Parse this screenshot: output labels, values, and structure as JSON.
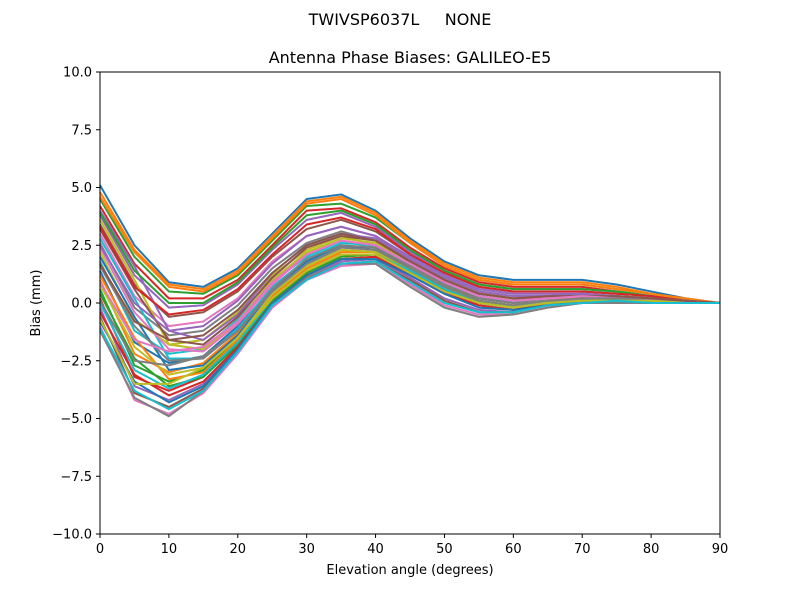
{
  "figure": {
    "suptitle": "TWIVSP6037L     NONE"
  },
  "chart_data": {
    "type": "line",
    "title": "Antenna Phase Biases: GALILEO-E5",
    "xlabel": "Elevation angle (degrees)",
    "ylabel": "Bias (mm)",
    "xlim": [
      0,
      90
    ],
    "ylim": [
      -10,
      10
    ],
    "xticks": [
      0,
      10,
      20,
      30,
      40,
      50,
      60,
      70,
      80,
      90
    ],
    "yticks": [
      -10.0,
      -7.5,
      -5.0,
      -2.5,
      0.0,
      2.5,
      5.0,
      7.5,
      10.0
    ],
    "xtick_labels": [
      "0",
      "10",
      "20",
      "30",
      "40",
      "50",
      "60",
      "70",
      "80",
      "90"
    ],
    "ytick_labels": [
      "−10.0",
      "−7.5",
      "−5.0",
      "−2.5",
      "0.0",
      "2.5",
      "5.0",
      "7.5",
      "10.0"
    ],
    "grid": false,
    "legend": "none",
    "x": [
      0,
      5,
      10,
      15,
      20,
      25,
      30,
      35,
      40,
      45,
      50,
      55,
      60,
      65,
      70,
      75,
      80,
      85,
      90
    ],
    "colors": [
      "#1f77b4",
      "#ff7f0e",
      "#2ca02c",
      "#d62728",
      "#9467bd",
      "#8c564b",
      "#e377c2",
      "#7f7f7f",
      "#bcbd22",
      "#17becf"
    ],
    "series": [
      {
        "values": [
          5.1,
          2.5,
          0.9,
          0.7,
          1.5,
          3.0,
          4.5,
          4.7,
          4.0,
          2.8,
          1.8,
          1.2,
          1.0,
          1.0,
          1.0,
          0.8,
          0.5,
          0.2,
          0.0
        ]
      },
      {
        "values": [
          4.8,
          2.3,
          0.8,
          0.6,
          1.4,
          2.9,
          4.4,
          4.6,
          3.9,
          2.7,
          1.7,
          1.1,
          0.9,
          0.9,
          0.9,
          0.7,
          0.4,
          0.2,
          0.0
        ]
      },
      {
        "values": [
          4.5,
          2.0,
          0.5,
          0.4,
          1.2,
          2.7,
          4.2,
          4.3,
          3.7,
          2.6,
          1.6,
          1.0,
          0.8,
          0.8,
          0.8,
          0.6,
          0.4,
          0.1,
          0.0
        ]
      },
      {
        "values": [
          4.2,
          1.7,
          0.2,
          0.2,
          1.0,
          2.5,
          4.0,
          4.1,
          3.5,
          2.4,
          1.5,
          0.9,
          0.7,
          0.7,
          0.7,
          0.5,
          0.3,
          0.1,
          0.0
        ]
      },
      {
        "values": [
          3.8,
          1.2,
          -0.2,
          -0.1,
          0.8,
          2.3,
          3.6,
          3.9,
          3.3,
          2.2,
          1.4,
          0.8,
          0.6,
          0.6,
          0.6,
          0.5,
          0.3,
          0.1,
          0.0
        ]
      },
      {
        "values": [
          3.4,
          0.8,
          -0.6,
          -0.4,
          0.5,
          2.0,
          3.2,
          3.6,
          3.1,
          2.1,
          1.3,
          0.7,
          0.5,
          0.5,
          0.5,
          0.4,
          0.3,
          0.1,
          0.0
        ]
      },
      {
        "values": [
          3.0,
          0.3,
          -1.0,
          -0.8,
          0.2,
          1.8,
          2.9,
          3.3,
          2.9,
          2.0,
          1.2,
          0.6,
          0.4,
          0.4,
          0.4,
          0.3,
          0.2,
          0.1,
          0.0
        ]
      },
      {
        "values": [
          2.6,
          -0.2,
          -1.4,
          -1.2,
          -0.1,
          1.5,
          2.6,
          3.1,
          2.7,
          1.9,
          1.1,
          0.5,
          0.3,
          0.3,
          0.4,
          0.3,
          0.2,
          0.1,
          0.0
        ]
      },
      {
        "values": [
          2.2,
          -0.7,
          -1.8,
          -1.6,
          -0.4,
          1.2,
          2.3,
          2.9,
          2.5,
          1.8,
          1.0,
          0.4,
          0.2,
          0.3,
          0.3,
          0.3,
          0.2,
          0.1,
          0.0
        ]
      },
      {
        "values": [
          1.8,
          -1.2,
          -2.2,
          -2.0,
          -0.7,
          0.9,
          2.0,
          2.7,
          2.4,
          1.6,
          0.9,
          0.3,
          0.1,
          0.2,
          0.3,
          0.2,
          0.1,
          0.0,
          0.0
        ]
      },
      {
        "values": [
          1.4,
          -1.7,
          -2.6,
          -2.3,
          -1.0,
          0.6,
          1.8,
          2.5,
          2.3,
          1.5,
          0.7,
          0.2,
          0.0,
          0.1,
          0.2,
          0.2,
          0.1,
          0.0,
          0.0
        ]
      },
      {
        "values": [
          1.0,
          -2.2,
          -3.0,
          -2.6,
          -1.3,
          0.4,
          1.6,
          2.3,
          2.2,
          1.4,
          0.6,
          0.1,
          -0.1,
          0.1,
          0.2,
          0.2,
          0.1,
          0.0,
          0.0
        ]
      },
      {
        "values": [
          0.6,
          -2.7,
          -3.4,
          -2.9,
          -1.6,
          0.2,
          1.4,
          2.1,
          2.1,
          1.3,
          0.5,
          0.0,
          -0.2,
          0.0,
          0.1,
          0.1,
          0.1,
          0.0,
          0.0
        ]
      },
      {
        "values": [
          0.2,
          -3.2,
          -3.8,
          -3.2,
          -1.8,
          0.0,
          1.2,
          1.9,
          2.0,
          1.2,
          0.4,
          -0.1,
          -0.3,
          0.0,
          0.1,
          0.1,
          0.1,
          0.0,
          0.0
        ]
      },
      {
        "values": [
          -0.2,
          -3.6,
          -4.2,
          -3.5,
          -2.0,
          -0.1,
          1.1,
          1.8,
          1.9,
          1.1,
          0.2,
          -0.3,
          -0.4,
          -0.1,
          0.1,
          0.1,
          0.1,
          0.0,
          0.0
        ]
      },
      {
        "values": [
          -0.6,
          -3.9,
          -4.5,
          -3.7,
          -2.1,
          -0.2,
          1.0,
          1.7,
          1.8,
          1.0,
          0.1,
          -0.4,
          -0.4,
          -0.1,
          0.1,
          0.1,
          0.1,
          0.0,
          0.0
        ]
      },
      {
        "values": [
          -1.0,
          -4.2,
          -4.8,
          -3.9,
          -2.2,
          -0.2,
          1.0,
          1.6,
          1.7,
          0.8,
          -0.1,
          -0.5,
          -0.5,
          -0.2,
          0.0,
          0.1,
          0.1,
          0.0,
          0.0
        ]
      },
      {
        "values": [
          -1.2,
          -4.1,
          -4.9,
          -3.8,
          -2.1,
          -0.1,
          1.1,
          1.7,
          1.7,
          0.7,
          -0.2,
          -0.6,
          -0.5,
          -0.2,
          0.0,
          0.0,
          0.0,
          0.0,
          0.0
        ]
      },
      {
        "values": [
          3.6,
          1.0,
          -1.8,
          -2.0,
          -0.8,
          1.0,
          2.2,
          2.8,
          2.6,
          1.8,
          1.0,
          0.4,
          0.2,
          0.2,
          0.3,
          0.2,
          0.1,
          0.0,
          0.0
        ]
      },
      {
        "values": [
          2.8,
          0.2,
          -2.4,
          -2.4,
          -1.1,
          0.7,
          1.9,
          2.6,
          2.5,
          1.7,
          0.9,
          0.3,
          0.1,
          0.2,
          0.3,
          0.2,
          0.1,
          0.0,
          0.0
        ]
      },
      {
        "values": [
          2.0,
          -0.6,
          -2.9,
          -2.7,
          -1.4,
          0.5,
          1.7,
          2.4,
          2.3,
          1.6,
          0.8,
          0.2,
          0.0,
          0.1,
          0.2,
          0.2,
          0.1,
          0.0,
          0.0
        ]
      },
      {
        "values": [
          1.2,
          -1.5,
          -3.3,
          -3.0,
          -1.6,
          0.3,
          1.5,
          2.2,
          2.2,
          1.5,
          0.7,
          0.1,
          -0.1,
          0.1,
          0.2,
          0.1,
          0.1,
          0.0,
          0.0
        ]
      },
      {
        "values": [
          0.4,
          -2.4,
          -3.6,
          -3.2,
          -1.8,
          0.1,
          1.3,
          2.0,
          2.1,
          1.4,
          0.6,
          0.0,
          -0.2,
          0.0,
          0.1,
          0.1,
          0.1,
          0.0,
          0.0
        ]
      },
      {
        "values": [
          -0.4,
          -3.1,
          -4.0,
          -3.4,
          -1.9,
          0.0,
          1.2,
          1.9,
          2.0,
          1.3,
          0.5,
          -0.1,
          -0.3,
          0.0,
          0.1,
          0.1,
          0.0,
          0.0,
          0.0
        ]
      },
      {
        "values": [
          4.0,
          1.6,
          -1.2,
          -1.6,
          -0.5,
          1.3,
          2.5,
          3.0,
          2.8,
          1.9,
          1.1,
          0.5,
          0.3,
          0.3,
          0.4,
          0.3,
          0.2,
          0.1,
          0.0
        ]
      },
      {
        "values": [
          3.2,
          0.6,
          -1.6,
          -1.8,
          -0.6,
          1.1,
          2.4,
          2.9,
          2.7,
          1.8,
          1.0,
          0.4,
          0.2,
          0.2,
          0.3,
          0.2,
          0.1,
          0.0,
          0.0
        ]
      },
      {
        "values": [
          2.4,
          -0.4,
          -2.0,
          -2.1,
          -0.9,
          0.8,
          2.1,
          2.7,
          2.5,
          1.7,
          0.9,
          0.3,
          0.1,
          0.2,
          0.2,
          0.2,
          0.1,
          0.0,
          0.0
        ]
      },
      {
        "values": [
          1.6,
          -1.0,
          -2.5,
          -2.4,
          -1.2,
          0.6,
          1.9,
          2.5,
          2.4,
          1.6,
          0.8,
          0.2,
          0.0,
          0.1,
          0.2,
          0.2,
          0.1,
          0.0,
          0.0
        ]
      },
      {
        "values": [
          0.8,
          -1.9,
          -3.1,
          -2.8,
          -1.5,
          0.4,
          1.6,
          2.3,
          2.2,
          1.5,
          0.7,
          0.1,
          -0.1,
          0.1,
          0.2,
          0.1,
          0.1,
          0.0,
          0.0
        ]
      },
      {
        "values": [
          0.0,
          -2.9,
          -3.7,
          -3.1,
          -1.7,
          0.2,
          1.4,
          2.1,
          2.1,
          1.4,
          0.6,
          0.0,
          -0.2,
          0.0,
          0.1,
          0.1,
          0.0,
          0.0,
          0.0
        ]
      },
      {
        "values": [
          -0.8,
          -3.4,
          -4.3,
          -3.6,
          -2.0,
          0.0,
          1.2,
          1.9,
          1.9,
          1.2,
          0.4,
          -0.2,
          -0.3,
          -0.1,
          0.1,
          0.1,
          0.0,
          0.0,
          0.0
        ]
      },
      {
        "values": [
          4.6,
          2.2,
          0.7,
          0.5,
          1.3,
          2.8,
          4.3,
          4.5,
          3.8,
          2.6,
          1.6,
          1.0,
          0.8,
          0.8,
          0.8,
          0.6,
          0.4,
          0.1,
          0.0
        ]
      },
      {
        "values": [
          3.9,
          1.4,
          0.0,
          0.0,
          0.9,
          2.4,
          3.8,
          4.0,
          3.4,
          2.3,
          1.4,
          0.8,
          0.6,
          0.6,
          0.6,
          0.5,
          0.3,
          0.1,
          0.0
        ]
      },
      {
        "values": [
          3.3,
          0.7,
          -0.5,
          -0.3,
          0.6,
          2.1,
          3.4,
          3.7,
          3.2,
          2.1,
          1.3,
          0.7,
          0.5,
          0.5,
          0.5,
          0.4,
          0.3,
          0.1,
          0.0
        ]
      },
      {
        "values": [
          2.5,
          0.0,
          -1.2,
          -1.0,
          0.1,
          1.7,
          2.9,
          3.3,
          2.9,
          2.0,
          1.2,
          0.6,
          0.4,
          0.4,
          0.4,
          0.3,
          0.2,
          0.1,
          0.0
        ]
      },
      {
        "values": [
          1.7,
          -0.8,
          -1.6,
          -1.4,
          -0.3,
          1.3,
          2.5,
          3.0,
          2.7,
          1.8,
          1.0,
          0.4,
          0.2,
          0.3,
          0.3,
          0.3,
          0.2,
          0.1,
          0.0
        ]
      },
      {
        "values": [
          0.9,
          -1.6,
          -2.1,
          -1.9,
          -0.8,
          0.9,
          2.1,
          2.7,
          2.5,
          1.7,
          0.9,
          0.3,
          0.1,
          0.2,
          0.3,
          0.2,
          0.1,
          0.0,
          0.0
        ]
      },
      {
        "values": [
          0.1,
          -2.5,
          -2.7,
          -2.3,
          -1.2,
          0.5,
          1.7,
          2.4,
          2.3,
          1.5,
          0.7,
          0.1,
          -0.1,
          0.1,
          0.2,
          0.2,
          0.1,
          0.0,
          0.0
        ]
      },
      {
        "values": [
          -0.7,
          -3.5,
          -3.5,
          -2.8,
          -1.5,
          0.2,
          1.4,
          2.1,
          2.1,
          1.3,
          0.5,
          0.0,
          -0.2,
          0.0,
          0.1,
          0.1,
          0.1,
          0.0,
          0.0
        ]
      },
      {
        "values": [
          -1.1,
          -3.8,
          -4.6,
          -3.8,
          -2.1,
          -0.1,
          1.0,
          1.7,
          1.8,
          0.9,
          0.0,
          -0.4,
          -0.4,
          -0.1,
          0.0,
          0.1,
          0.0,
          0.0,
          0.0
        ]
      }
    ]
  }
}
